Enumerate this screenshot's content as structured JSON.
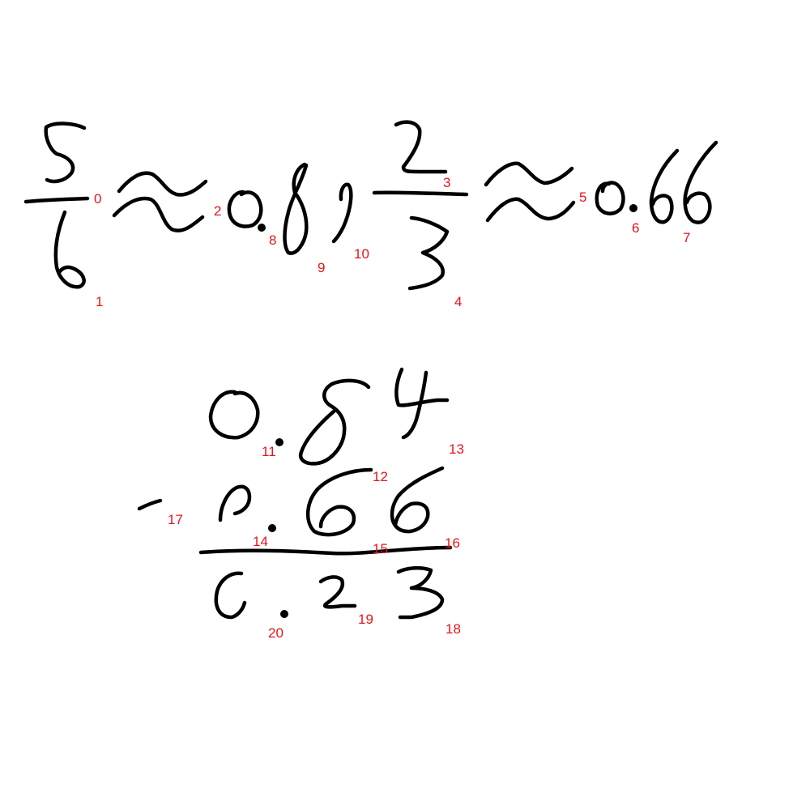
{
  "strokes": [
    {
      "index": "0",
      "glyph": "fraction bar"
    },
    {
      "index": "1",
      "glyph": "6"
    },
    {
      "index": "2",
      "glyph": "approximately"
    },
    {
      "index": "3",
      "glyph": "fraction bar"
    },
    {
      "index": "4",
      "glyph": "3"
    },
    {
      "index": "5",
      "glyph": "approximately"
    },
    {
      "index": "6",
      "glyph": "decimal point"
    },
    {
      "index": "7",
      "glyph": "6"
    },
    {
      "index": "8",
      "glyph": "decimal point"
    },
    {
      "index": "9",
      "glyph": "8"
    },
    {
      "index": "10",
      "glyph": "1"
    },
    {
      "index": "11",
      "glyph": "decimal point"
    },
    {
      "index": "12",
      "glyph": "8"
    },
    {
      "index": "13",
      "glyph": "4"
    },
    {
      "index": "14",
      "glyph": "decimal point"
    },
    {
      "index": "15",
      "glyph": "6"
    },
    {
      "index": "16",
      "glyph": "subtraction line"
    },
    {
      "index": "17",
      "glyph": "minus"
    },
    {
      "index": "18",
      "glyph": "3"
    },
    {
      "index": "19",
      "glyph": "2"
    },
    {
      "index": "20",
      "glyph": "decimal point"
    }
  ],
  "colors": {
    "ink": "#000000",
    "label": "#e8141a",
    "background": "#ffffff"
  }
}
